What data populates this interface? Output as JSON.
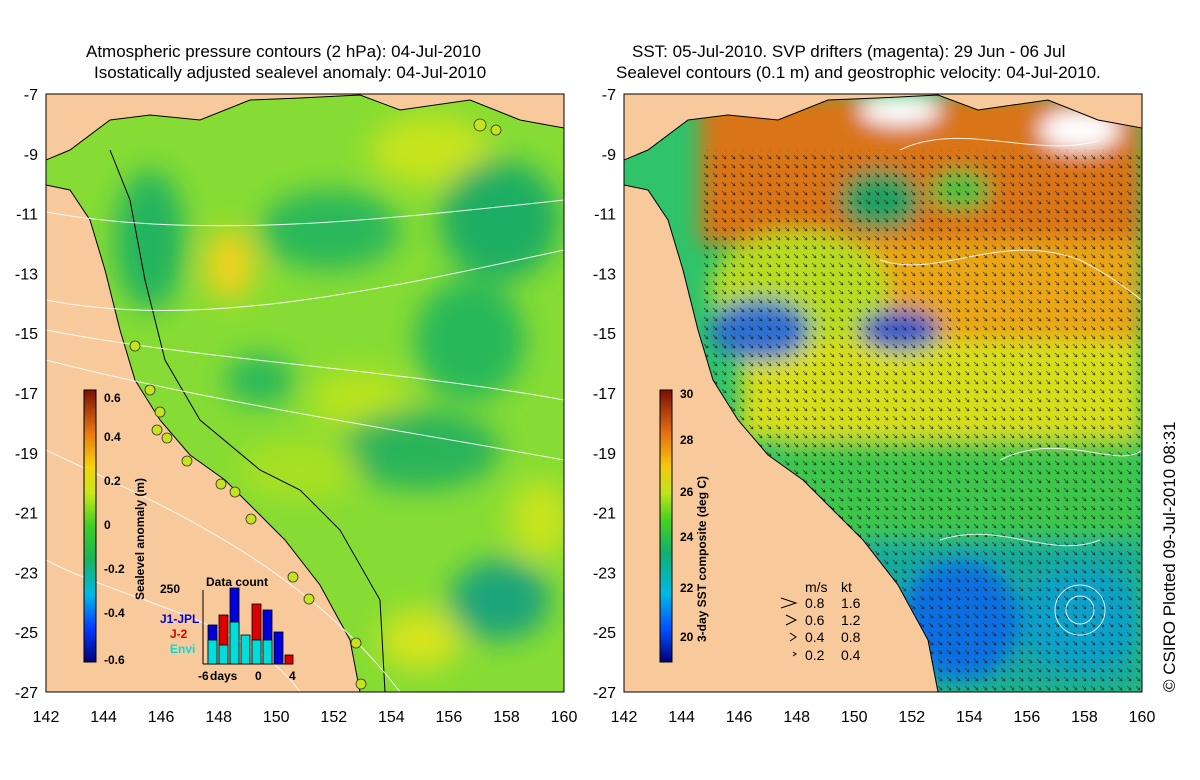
{
  "left_panel": {
    "title_line1": "Atmospheric pressure contours (2 hPa): 04-Jul-2010",
    "title_line2": "Isostatically adjusted sealevel anomaly: 04-Jul-2010",
    "colorbar": {
      "label": "Sealevel anomaly (m)",
      "ticks": [
        "0.6",
        "0.4",
        "0.2",
        "0",
        "-0.2",
        "-0.4",
        "-0.6"
      ]
    },
    "inset": {
      "title": "Data count",
      "ymax_label": "250",
      "series": [
        "J1-JPL",
        "J-2",
        "Envi"
      ],
      "series_colors": [
        "#0000dd",
        "#dd0000",
        "#00dddd"
      ],
      "x_labels": [
        "-6",
        "days",
        "0",
        "4"
      ]
    }
  },
  "right_panel": {
    "title_line1": "SST: 05-Jul-2010. SVP drifters (magenta): 29 Jun - 06 Jul",
    "title_line2": "Sealevel contours (0.1 m) and geostrophic velocity: 04-Jul-2010.",
    "colorbar": {
      "label": "3-day SST composite (deg C)",
      "ticks": [
        "30",
        "28",
        "26",
        "24",
        "22",
        "20"
      ]
    },
    "velocity_legend": {
      "header_ms": "m/s",
      "header_kt": "kt",
      "rows": [
        {
          "ms": "0.8",
          "kt": "1.6"
        },
        {
          "ms": "0.6",
          "kt": "1.2"
        },
        {
          "ms": "0.4",
          "kt": "0.8"
        },
        {
          "ms": "0.2",
          "kt": "0.4"
        }
      ]
    }
  },
  "axes": {
    "x_ticks": [
      "142",
      "144",
      "146",
      "148",
      "150",
      "152",
      "154",
      "156",
      "158",
      "160"
    ],
    "y_ticks": [
      "-7",
      "-9",
      "-11",
      "-13",
      "-15",
      "-17",
      "-19",
      "-21",
      "-23",
      "-25",
      "-27"
    ]
  },
  "credit": "© CSIRO Plotted 09-Jul-2010 08:31",
  "colors": {
    "land": "#f8c99a",
    "ocean_green": "#7edc2c",
    "sst_warm": "#d9761a",
    "sst_cool": "#18b6a8"
  }
}
